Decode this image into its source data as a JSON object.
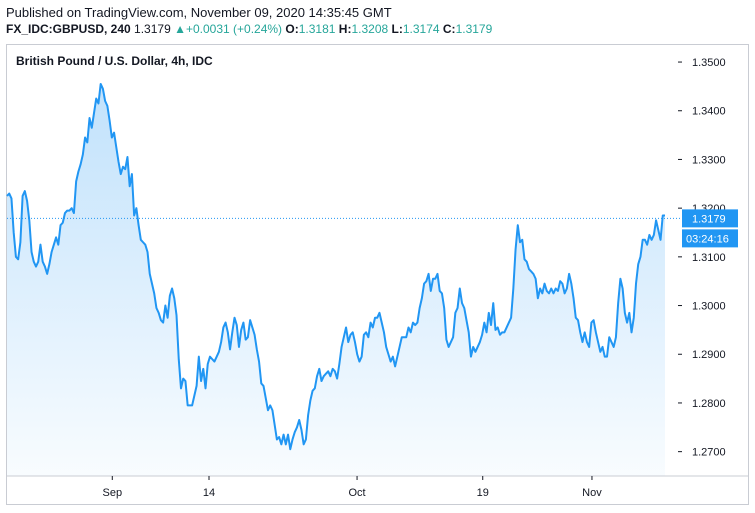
{
  "header": {
    "published": "Published on TradingView.com, November 09, 2020 14:35:45 GMT",
    "symbol": "FX_IDC:GBPUSD, 240",
    "last": "1.3179",
    "change_arrow": "▲",
    "change": "+0.0031 (+0.24%)",
    "open_label": "O:",
    "open": "1.3181",
    "high_label": "H:",
    "high": "1.3208",
    "low_label": "L:",
    "low": "1.3174",
    "close_label": "C:",
    "close": "1.3179"
  },
  "colors": {
    "line": "#2196f3",
    "accent_up": "#26a69a",
    "badge": "#2196f3"
  },
  "chart_data": {
    "type": "area",
    "title": "British Pound / U.S. Dollar, 4h, IDC",
    "ylim": [
      1.265,
      1.3535
    ],
    "y_ticks": [
      1.35,
      1.34,
      1.33,
      1.32,
      1.31,
      1.3,
      1.29,
      1.28,
      1.27
    ],
    "y_tick_labels": [
      "1.3500",
      "1.3400",
      "1.3300",
      "1.3200",
      "1.3100",
      "1.3000",
      "1.2900",
      "1.2800",
      "1.2700"
    ],
    "x_ticks": [
      {
        "label": "Sep",
        "t": 0.16
      },
      {
        "label": "14",
        "t": 0.307
      },
      {
        "label": "Oct",
        "t": 0.532
      },
      {
        "label": "19",
        "t": 0.723
      },
      {
        "label": "Nov",
        "t": 0.889
      }
    ],
    "last_price_label": "1.3179",
    "countdown_label": "03:24:16",
    "last_price": 1.3179,
    "series": [
      {
        "values": [
          1.3225,
          1.323,
          1.322,
          1.315,
          1.31,
          1.3095,
          1.313,
          1.3225,
          1.3235,
          1.3215,
          1.3175,
          1.311,
          1.309,
          1.308,
          1.309,
          1.3125,
          1.309,
          1.308,
          1.3065,
          1.3085,
          1.311,
          1.3125,
          1.314,
          1.3125,
          1.3165,
          1.317,
          1.319,
          1.3195,
          1.3195,
          1.32,
          1.319,
          1.3255,
          1.3275,
          1.329,
          1.331,
          1.3345,
          1.3335,
          1.3385,
          1.3365,
          1.3395,
          1.3425,
          1.3415,
          1.3455,
          1.3445,
          1.342,
          1.341,
          1.338,
          1.3345,
          1.3355,
          1.3325,
          1.3295,
          1.327,
          1.3285,
          1.328,
          1.3305,
          1.3245,
          1.327,
          1.3185,
          1.32,
          1.3165,
          1.3135,
          1.313,
          1.3125,
          1.311,
          1.3065,
          1.3045,
          1.3025,
          1.2995,
          1.2985,
          1.297,
          1.2965,
          1.3,
          1.2975,
          1.302,
          1.3035,
          1.3015,
          1.298,
          1.289,
          1.283,
          1.285,
          1.2845,
          1.2795,
          1.2795,
          1.2795,
          1.2815,
          1.2835,
          1.2895,
          1.2845,
          1.287,
          1.283,
          1.288,
          1.2895,
          1.289,
          1.2885,
          1.2895,
          1.2905,
          1.2925,
          1.2955,
          1.2965,
          1.2945,
          1.291,
          1.2945,
          1.2975,
          1.296,
          1.2915,
          1.295,
          1.2965,
          1.293,
          1.2935,
          1.297,
          1.2955,
          1.294,
          1.291,
          1.2885,
          1.284,
          1.2835,
          1.281,
          1.2785,
          1.2795,
          1.2785,
          1.2755,
          1.2725,
          1.273,
          1.2715,
          1.2735,
          1.2715,
          1.2735,
          1.2705,
          1.2725,
          1.274,
          1.275,
          1.2765,
          1.2745,
          1.2715,
          1.2725,
          1.2775,
          1.2805,
          1.2825,
          1.283,
          1.2855,
          1.287,
          1.2845,
          1.2855,
          1.286,
          1.2865,
          1.2855,
          1.287,
          1.2865,
          1.285,
          1.288,
          1.2915,
          1.2935,
          1.2955,
          1.2925,
          1.294,
          1.2945,
          1.2925,
          1.29,
          1.2885,
          1.2895,
          1.294,
          1.2945,
          1.2935,
          1.2965,
          1.2955,
          1.2975,
          1.2975,
          1.2985,
          1.2965,
          1.2945,
          1.2915,
          1.29,
          1.2885,
          1.2895,
          1.2875,
          1.2895,
          1.2915,
          1.2935,
          1.2935,
          1.2935,
          1.2955,
          1.2945,
          1.2965,
          1.296,
          1.2965,
          1.2995,
          1.3015,
          1.3045,
          1.305,
          1.3065,
          1.303,
          1.3055,
          1.3055,
          1.3065,
          1.303,
          1.3025,
          1.2995,
          1.293,
          1.2915,
          1.2925,
          1.2935,
          1.2985,
          1.2995,
          1.3035,
          1.3005,
          1.2995,
          1.297,
          1.2945,
          1.2895,
          1.2915,
          1.2905,
          1.2915,
          1.2925,
          1.294,
          1.2965,
          1.2945,
          1.2985,
          1.296,
          1.3005,
          1.295,
          1.2955,
          1.294,
          1.2945,
          1.2945,
          1.2955,
          1.2965,
          1.2975,
          1.3035,
          1.3115,
          1.3165,
          1.313,
          1.3135,
          1.3095,
          1.309,
          1.3075,
          1.307,
          1.3065,
          1.3055,
          1.3015,
          1.3035,
          1.3025,
          1.3045,
          1.303,
          1.3025,
          1.3035,
          1.3025,
          1.3035,
          1.303,
          1.305,
          1.3045,
          1.3025,
          1.3035,
          1.3065,
          1.3045,
          1.3015,
          1.2975,
          1.297,
          1.2945,
          1.2925,
          1.2945,
          1.2925,
          1.2915,
          1.2965,
          1.297,
          1.2945,
          1.2925,
          1.2905,
          1.2915,
          1.2895,
          1.2895,
          1.2935,
          1.2925,
          1.2915,
          1.2935,
          1.3005,
          1.3055,
          1.3035,
          1.2985,
          1.2965,
          1.2985,
          1.2945,
          1.2975,
          1.3045,
          1.3085,
          1.31,
          1.3135,
          1.3135,
          1.3125,
          1.3145,
          1.3135,
          1.3145,
          1.3175,
          1.3155,
          1.3135,
          1.3185,
          1.3185
        ]
      }
    ]
  }
}
